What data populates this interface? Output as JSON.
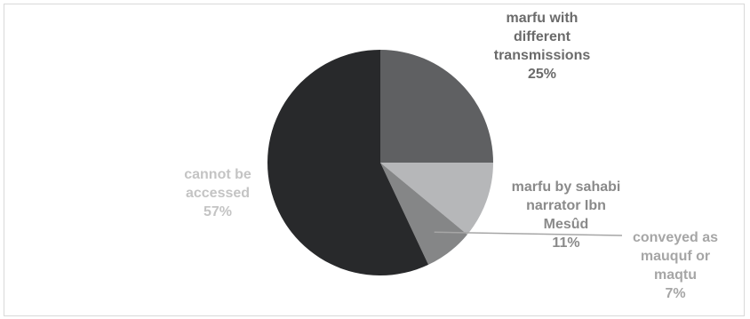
{
  "chart_data": {
    "type": "pie",
    "slices": [
      {
        "label_lines": [
          "marfu with",
          "different",
          "transmissions"
        ],
        "value": 25,
        "percent_label": "25%",
        "color": "#5f6062",
        "label_color": "#6b6b6b"
      },
      {
        "label_lines": [
          "marfu by sahabi",
          "narrator Ibn",
          "Mesûd"
        ],
        "value": 11,
        "percent_label": "11%",
        "color": "#b6b7b9",
        "label_color": "#8a8a8a"
      },
      {
        "label_lines": [
          "conveyed as",
          "mauquf or",
          "maqtu"
        ],
        "value": 7,
        "percent_label": "7%",
        "color": "#858687",
        "label_color": "#a6a6a6"
      },
      {
        "label_lines": [
          "cannot be",
          "accessed"
        ],
        "value": 57,
        "percent_label": "57%",
        "color": "#28292b",
        "label_color": "#c4c4c4"
      }
    ],
    "start_angle_deg": 0,
    "direction": "clockwise",
    "legend": "none",
    "leader_line": "slice-2"
  }
}
